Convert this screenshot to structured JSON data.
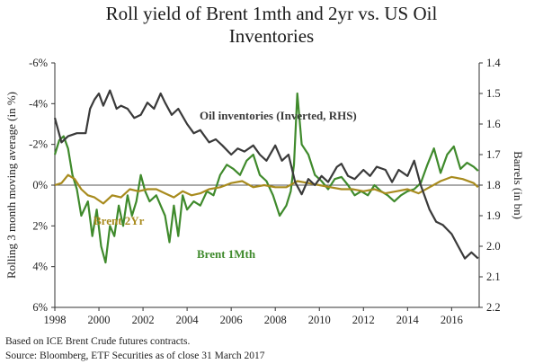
{
  "chart_data": {
    "type": "line",
    "title_line1": "Roll yield of Brent 1mth and 2yr vs. US Oil",
    "title_line2": "Inventories",
    "ylabel_left": "Rolling 3 month moving average (in %)",
    "ylabel_right": "Barrels (in bn)",
    "x_range": [
      1998,
      2017.25
    ],
    "ylim_left": [
      -6,
      6
    ],
    "ylim_right": [
      2.2,
      1.4
    ],
    "right_axis_inverted": true,
    "x_ticks": [
      1998,
      2000,
      2002,
      2004,
      2006,
      2008,
      2010,
      2012,
      2014,
      2016
    ],
    "x_tick_labels": [
      "1998",
      "2000",
      "2002",
      "2004",
      "2006",
      "2008",
      "2010",
      "2012",
      "2014",
      "2016"
    ],
    "y_left_ticks": [
      6,
      4,
      2,
      0,
      -2,
      -4,
      -6
    ],
    "y_left_tick_labels": [
      "6%",
      "4%",
      "2%",
      "0%",
      "-2%",
      "-4%",
      "-6%"
    ],
    "y_right_ticks": [
      1.4,
      1.5,
      1.6,
      1.7,
      1.8,
      1.9,
      2.0,
      2.1,
      2.2
    ],
    "y_right_tick_labels": [
      "1.4",
      "1.5",
      "1.6",
      "1.7",
      "1.8",
      "1.9",
      "2.0",
      "2.1",
      "2.2"
    ],
    "series": [
      {
        "name": "Oil inventories (Inverted, RHS)",
        "axis": "right",
        "color": "#3a3a3a",
        "x": [
          1998.0,
          1998.3,
          1998.6,
          1999.0,
          1999.4,
          1999.6,
          1999.8,
          2000.0,
          2000.2,
          2000.5,
          2000.8,
          2001.0,
          2001.3,
          2001.6,
          2001.9,
          2002.2,
          2002.5,
          2002.8,
          2003.0,
          2003.3,
          2003.6,
          2004.0,
          2004.3,
          2004.6,
          2005.0,
          2005.3,
          2005.6,
          2006.0,
          2006.3,
          2006.6,
          2007.0,
          2007.3,
          2007.6,
          2008.0,
          2008.3,
          2008.6,
          2008.9,
          2009.2,
          2009.5,
          2009.8,
          2010.1,
          2010.4,
          2010.8,
          2011.0,
          2011.3,
          2011.6,
          2012.0,
          2012.3,
          2012.6,
          2013.0,
          2013.3,
          2013.6,
          2014.0,
          2014.3,
          2014.6,
          2015.0,
          2015.3,
          2015.6,
          2016.0,
          2016.3,
          2016.6,
          2016.9,
          2017.2
        ],
        "values": [
          1.58,
          1.66,
          1.64,
          1.63,
          1.63,
          1.55,
          1.52,
          1.5,
          1.54,
          1.49,
          1.55,
          1.54,
          1.55,
          1.58,
          1.57,
          1.53,
          1.55,
          1.5,
          1.53,
          1.57,
          1.55,
          1.6,
          1.63,
          1.62,
          1.66,
          1.65,
          1.67,
          1.7,
          1.68,
          1.69,
          1.67,
          1.7,
          1.72,
          1.67,
          1.72,
          1.7,
          1.79,
          1.83,
          1.78,
          1.8,
          1.77,
          1.79,
          1.74,
          1.73,
          1.77,
          1.78,
          1.75,
          1.77,
          1.74,
          1.75,
          1.79,
          1.75,
          1.77,
          1.72,
          1.8,
          1.88,
          1.92,
          1.93,
          1.96,
          2.0,
          2.04,
          2.02,
          2.04
        ]
      },
      {
        "name": "Brent 1Mth",
        "axis": "left",
        "color": "#3f8a2c",
        "x": [
          1998.0,
          1998.2,
          1998.4,
          1998.6,
          1998.8,
          1999.0,
          1999.2,
          1999.5,
          1999.7,
          1999.9,
          2000.1,
          2000.3,
          2000.5,
          2000.7,
          2000.9,
          2001.1,
          2001.3,
          2001.5,
          2001.7,
          2001.9,
          2002.1,
          2002.3,
          2002.6,
          2002.8,
          2003.0,
          2003.2,
          2003.4,
          2003.6,
          2003.8,
          2004.0,
          2004.3,
          2004.6,
          2004.9,
          2005.2,
          2005.5,
          2005.8,
          2006.1,
          2006.4,
          2006.7,
          2007.0,
          2007.3,
          2007.6,
          2007.9,
          2008.2,
          2008.5,
          2008.7,
          2008.85,
          2009.0,
          2009.2,
          2009.5,
          2009.8,
          2010.1,
          2010.4,
          2010.7,
          2011.0,
          2011.3,
          2011.6,
          2011.9,
          2012.2,
          2012.5,
          2012.8,
          2013.1,
          2013.4,
          2013.7,
          2014.0,
          2014.3,
          2014.6,
          2014.9,
          2015.2,
          2015.5,
          2015.8,
          2016.1,
          2016.4,
          2016.7,
          2017.0,
          2017.2
        ],
        "values": [
          -1.5,
          -2.2,
          -2.4,
          -1.8,
          -0.5,
          0.2,
          1.5,
          0.8,
          2.5,
          1.2,
          3.0,
          3.8,
          2.0,
          2.5,
          1.0,
          2.0,
          0.5,
          1.5,
          0.8,
          -0.5,
          0.3,
          0.8,
          0.5,
          1.0,
          1.5,
          2.8,
          1.0,
          2.5,
          0.5,
          1.2,
          0.8,
          1.0,
          0.3,
          0.5,
          -0.5,
          -1.0,
          -0.8,
          -0.5,
          -1.2,
          -1.5,
          -0.5,
          -0.2,
          0.5,
          1.5,
          1.0,
          0.3,
          -1.0,
          -4.5,
          -2.0,
          -1.5,
          -0.5,
          -0.2,
          0.2,
          -0.3,
          -0.4,
          0.0,
          0.5,
          0.3,
          0.5,
          0.0,
          0.3,
          0.5,
          0.8,
          0.5,
          0.3,
          0.2,
          -0.1,
          -1.0,
          -1.8,
          -0.6,
          -1.5,
          -1.9,
          -0.8,
          -1.1,
          -0.9,
          -0.7
        ]
      },
      {
        "name": "Brent 2Yr",
        "axis": "left",
        "color": "#a88b1e",
        "x": [
          1998.0,
          1998.3,
          1998.6,
          1998.9,
          1999.2,
          1999.5,
          1999.8,
          2000.2,
          2000.6,
          2001.0,
          2001.4,
          2001.8,
          2002.2,
          2002.6,
          2003.0,
          2003.4,
          2003.8,
          2004.2,
          2004.6,
          2005.0,
          2005.5,
          2006.0,
          2006.5,
          2007.0,
          2007.5,
          2008.0,
          2008.5,
          2009.0,
          2009.5,
          2010.0,
          2010.5,
          2011.0,
          2011.5,
          2012.0,
          2012.5,
          2013.0,
          2013.5,
          2014.0,
          2014.5,
          2015.0,
          2015.5,
          2016.0,
          2016.5,
          2017.0,
          2017.2
        ],
        "values": [
          0.0,
          -0.1,
          -0.5,
          -0.3,
          0.2,
          0.5,
          0.6,
          0.9,
          0.5,
          0.6,
          0.2,
          0.3,
          0.2,
          0.2,
          0.4,
          0.6,
          0.3,
          0.5,
          0.4,
          0.2,
          0.1,
          -0.1,
          -0.2,
          0.1,
          0.0,
          0.1,
          0.1,
          -0.2,
          -0.1,
          0.0,
          0.1,
          0.2,
          0.2,
          0.3,
          0.2,
          0.4,
          0.3,
          0.2,
          0.4,
          0.1,
          -0.2,
          -0.4,
          -0.3,
          -0.1,
          0.1
        ]
      }
    ],
    "annotations": [
      {
        "text": "Oil inventories (Inverted, RHS)",
        "series": "Oil inventories (Inverted, RHS)"
      },
      {
        "text": "Brent 2Yr",
        "series": "Brent 2Yr"
      },
      {
        "text": "Brent 1Mth",
        "series": "Brent 1Mth"
      }
    ],
    "grid": false,
    "zero_line": true
  },
  "footnote_line1": "Based on ICE Brent Crude futures contracts.",
  "footnote_line2": "Source: Bloomberg, ETF Securities as of close 31 March 2017"
}
